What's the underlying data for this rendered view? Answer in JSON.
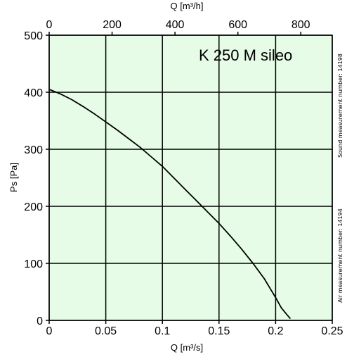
{
  "chart_data": {
    "type": "line",
    "title": "K 250 M sileo",
    "xlabel": "Q [m³/s]",
    "x2label": "Q [m³/h]",
    "ylabel": "Ps [Pa]",
    "xlim": [
      0,
      0.25
    ],
    "ylim": [
      0,
      500
    ],
    "x2lim": [
      0,
      900
    ],
    "x_ticks": [
      0,
      0.05,
      0.1,
      0.15,
      0.2,
      0.25
    ],
    "x_tick_labels": [
      "0",
      "0.05",
      "0.1",
      "0.15",
      "0.2",
      "0.25"
    ],
    "x2_ticks": [
      0,
      200,
      400,
      600,
      800
    ],
    "x2_tick_labels": [
      "0",
      "200",
      "400",
      "600",
      "800"
    ],
    "y_ticks": [
      0,
      100,
      200,
      300,
      400,
      500
    ],
    "y_tick_labels": [
      "0",
      "100",
      "200",
      "300",
      "400",
      "500"
    ],
    "grid": true,
    "background_color": "#e6fce6",
    "line_color": "#000000",
    "series": [
      {
        "x": [
          0,
          0.01,
          0.02,
          0.03,
          0.04,
          0.05,
          0.06,
          0.07,
          0.08,
          0.09,
          0.1,
          0.11,
          0.12,
          0.13,
          0.14,
          0.15,
          0.16,
          0.17,
          0.18,
          0.19,
          0.2,
          0.205,
          0.21,
          0.213
        ],
        "y": [
          405,
          397,
          387,
          375,
          362,
          348,
          334,
          319,
          304,
          287,
          270,
          250,
          230,
          210,
          190,
          170,
          148,
          125,
          100,
          73,
          40,
          22,
          10,
          3
        ]
      }
    ],
    "annotations": {
      "sound": "Sound measurement number: 14198",
      "air": "Air measurement number: 14194"
    }
  }
}
